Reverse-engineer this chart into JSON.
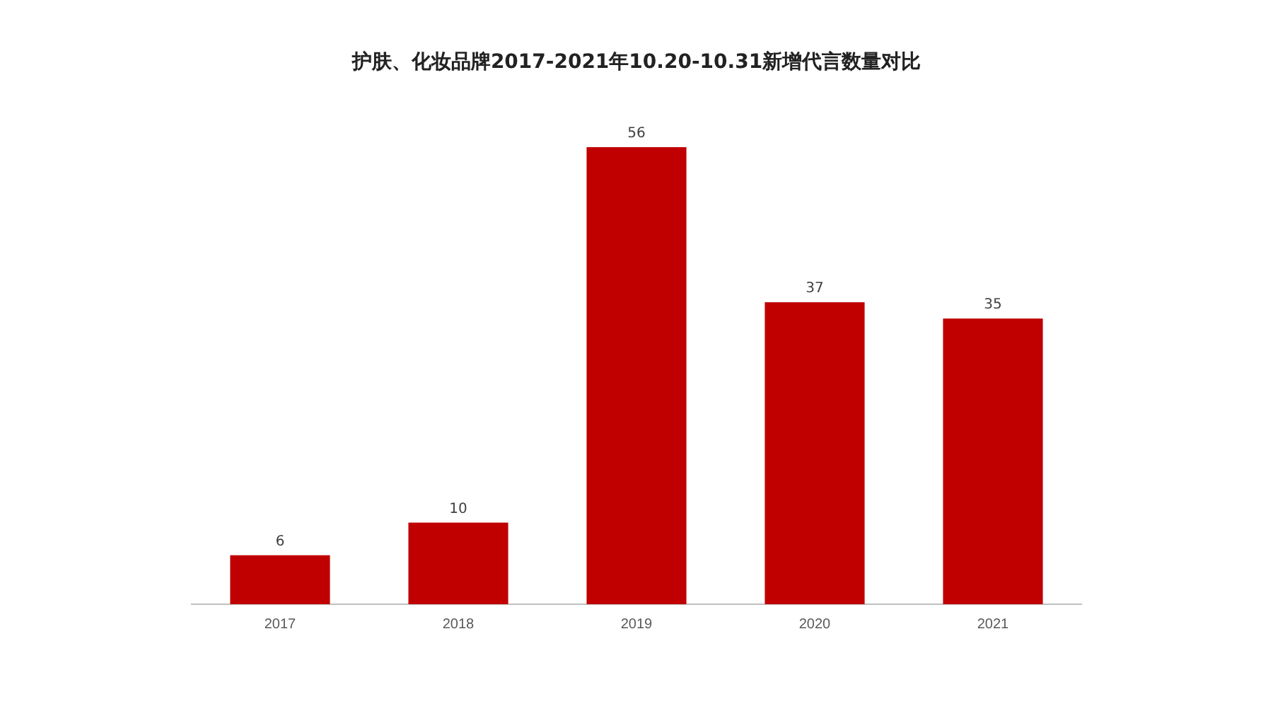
{
  "chart_data": {
    "type": "bar",
    "title": "护肤、化妆品牌2017-2021年10.20-10.31新增代言数量对比",
    "categories": [
      "2017",
      "2018",
      "2019",
      "2020",
      "2021"
    ],
    "values": [
      6,
      10,
      56,
      37,
      35
    ],
    "color": "#c00000",
    "data_labels": true
  }
}
